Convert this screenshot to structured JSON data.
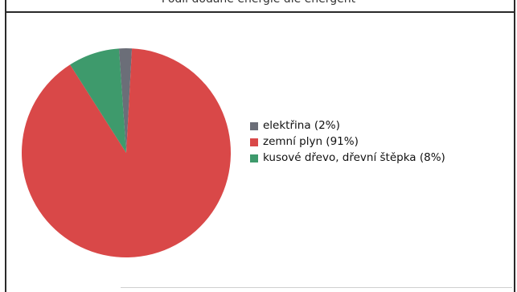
{
  "header": {
    "title": "Podíl dodané energie dle energent"
  },
  "chart_data": {
    "type": "pie",
    "slices": [
      {
        "label": "elektřina (2%)",
        "value": 2,
        "color": "#6b6e78"
      },
      {
        "label": "zemní plyn (91%)",
        "value": 91,
        "color": "#d94848"
      },
      {
        "label": "kusové dřevo, dřevní štěpka (8%)",
        "value": 8,
        "color": "#3e9a6c"
      }
    ],
    "start_angle_deg": -4,
    "legend": "right"
  }
}
